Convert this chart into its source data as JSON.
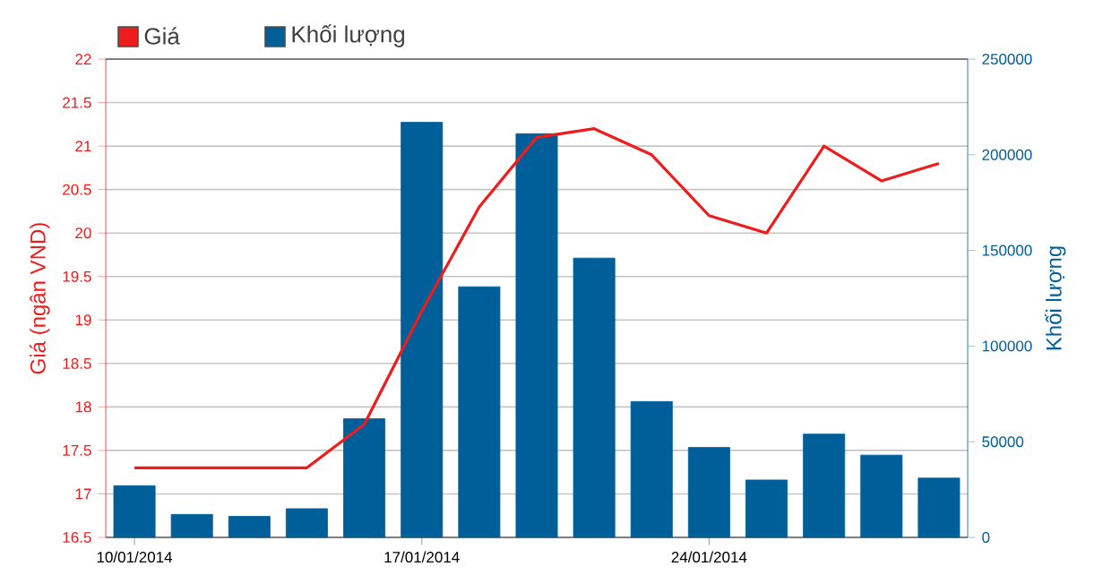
{
  "chart_data": {
    "type": "bar",
    "categories": [
      "10/01/2014",
      null,
      null,
      null,
      null,
      "17/01/2014",
      null,
      null,
      null,
      null,
      "24/01/2014",
      null,
      null,
      null,
      null
    ],
    "ylabel": "Giá (ngân VND)",
    "y2label": "Khối lượng",
    "ylim": [
      16.5,
      22
    ],
    "yticks": [
      16.5,
      17,
      17.5,
      18,
      18.5,
      19,
      19.5,
      20,
      20.5,
      21,
      21.5,
      22
    ],
    "y2lim": [
      0,
      250000
    ],
    "y2ticks": [
      0,
      50000,
      100000,
      150000,
      200000,
      250000
    ],
    "grid": "y",
    "legend": "top left",
    "marker": "none",
    "line_style": "solid",
    "series": [
      {
        "name": "Giá",
        "type": "line",
        "axis": "y",
        "color": "#ee1c1c",
        "values": [
          17.3,
          17.3,
          17.3,
          17.3,
          17.8,
          19.1,
          20.3,
          21.1,
          21.2,
          20.9,
          20.2,
          20.0,
          21.0,
          20.6,
          20.8
        ]
      },
      {
        "name": "Khối lượng",
        "axis": "y2",
        "color": "#005e99",
        "values": [
          27000,
          12000,
          11000,
          15000,
          62000,
          217000,
          131000,
          211000,
          146000,
          71000,
          47000,
          30000,
          54000,
          43000,
          31000
        ]
      }
    ]
  }
}
